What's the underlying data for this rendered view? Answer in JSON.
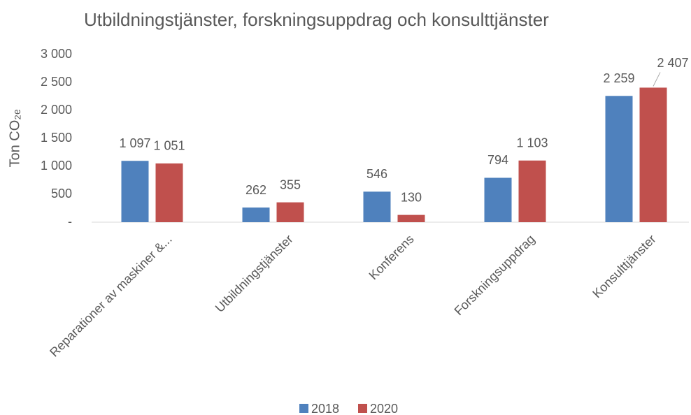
{
  "chart_data": {
    "type": "bar",
    "title": "Utbildningstjänster, forskningsuppdrag och konsulttjänster",
    "y_label": "Ton CO₂ₑ",
    "categories": [
      "Reparationer av maskiner &...",
      "Utbildningstjänster",
      "Konferens",
      "Forskningsuppdrag",
      "Konsulttjänster"
    ],
    "series": [
      {
        "name": "2018",
        "color": "#4f81bd",
        "values": [
          1097,
          262,
          546,
          794,
          2259
        ],
        "value_labels": [
          "1 097",
          "262",
          "546",
          "794",
          "2 259"
        ]
      },
      {
        "name": "2020",
        "color": "#c0504d",
        "values": [
          1051,
          355,
          130,
          1103,
          2407
        ],
        "value_labels": [
          "1 051",
          "355",
          "130",
          "1 103",
          "2 407"
        ]
      }
    ],
    "ylim": [
      0,
      3000
    ],
    "yticks": [
      {
        "value": 0,
        "label": "-"
      },
      500,
      {
        "value": 1000,
        "label": "1 000"
      },
      {
        "value": 1500,
        "label": "1 500"
      },
      {
        "value": 2000,
        "label": "2 000"
      },
      {
        "value": 2500,
        "label": "2 500"
      },
      {
        "value": 3000,
        "label": "3 000"
      }
    ],
    "grid": false,
    "legend": "bottom"
  }
}
